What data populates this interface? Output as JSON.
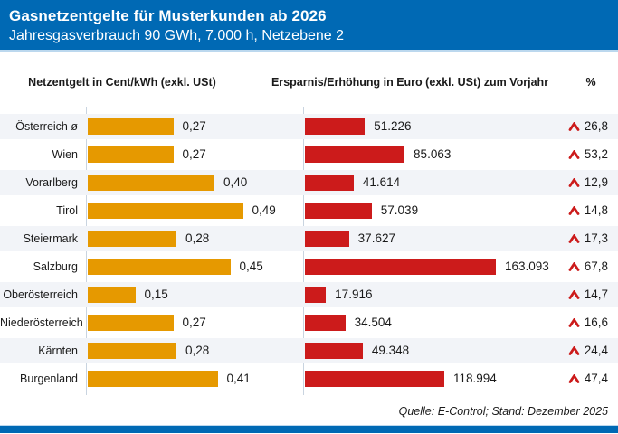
{
  "header": {
    "title": "Gasnetzentgelte für Musterkunden ab 2026",
    "subtitle": "Jahresgasverbrauch 90 GWh, 7.000 h, Netzebene 2"
  },
  "columns": {
    "left": "Netzentgelt in Cent/kWh (exkl. USt)",
    "right": "Ersparnis/Erhöhung in Euro (exkl. USt) zum Vorjahr",
    "percent": "%"
  },
  "source": "Quelle: E-Control; Stand: Dezember 2025",
  "colors": {
    "brand_blue": "#0069B4",
    "bar_orange": "#E69900",
    "bar_red": "#CC1B1B",
    "row_band": "#F2F4F8",
    "separator_line": "#C9D4E0"
  },
  "chart_data": {
    "type": "bar",
    "orientation": "horizontal",
    "title": "Gasnetzentgelte für Musterkunden ab 2026",
    "subtitle": "Jahresgasverbrauch 90 GWh, 7.000 h, Netzebene 2",
    "categories": [
      "Österreich ø",
      "Wien",
      "Vorarlberg",
      "Tirol",
      "Steiermark",
      "Salzburg",
      "Oberösterreich",
      "Niederösterreich",
      "Kärnten",
      "Burgenland"
    ],
    "series": [
      {
        "name": "Netzentgelt in Cent/kWh (exkl. USt)",
        "values": [
          0.27,
          0.27,
          0.4,
          0.49,
          0.28,
          0.45,
          0.15,
          0.27,
          0.28,
          0.41
        ],
        "labels": [
          "0,27",
          "0,27",
          "0,40",
          "0,49",
          "0,28",
          "0,45",
          "0,15",
          "0,27",
          "0,28",
          "0,41"
        ],
        "color": "#E69900",
        "value_range": [
          0,
          0.49
        ]
      },
      {
        "name": "Ersparnis/Erhöhung in Euro (exkl. USt) zum Vorjahr",
        "values": [
          51226,
          85063,
          41614,
          57039,
          37627,
          163093,
          17916,
          34504,
          49348,
          118994
        ],
        "labels": [
          "51.226",
          "85.063",
          "41.614",
          "57.039",
          "37.627",
          "163.093",
          "17.916",
          "34.504",
          "49.348",
          "118.994"
        ],
        "color": "#CC1B1B",
        "value_range": [
          0,
          163093
        ]
      },
      {
        "name": "% zum Vorjahr",
        "values": [
          26.8,
          53.2,
          12.9,
          14.8,
          17.3,
          67.8,
          14.7,
          16.6,
          24.4,
          47.4
        ],
        "labels": [
          "26,8",
          "53,2",
          "12,9",
          "14,8",
          "17,3",
          "67,8",
          "14,7",
          "16,6",
          "24,4",
          "47,4"
        ],
        "direction": "up",
        "marker": "red-up-caret"
      }
    ],
    "legend": "none",
    "grid": "off",
    "row_striping": true
  }
}
